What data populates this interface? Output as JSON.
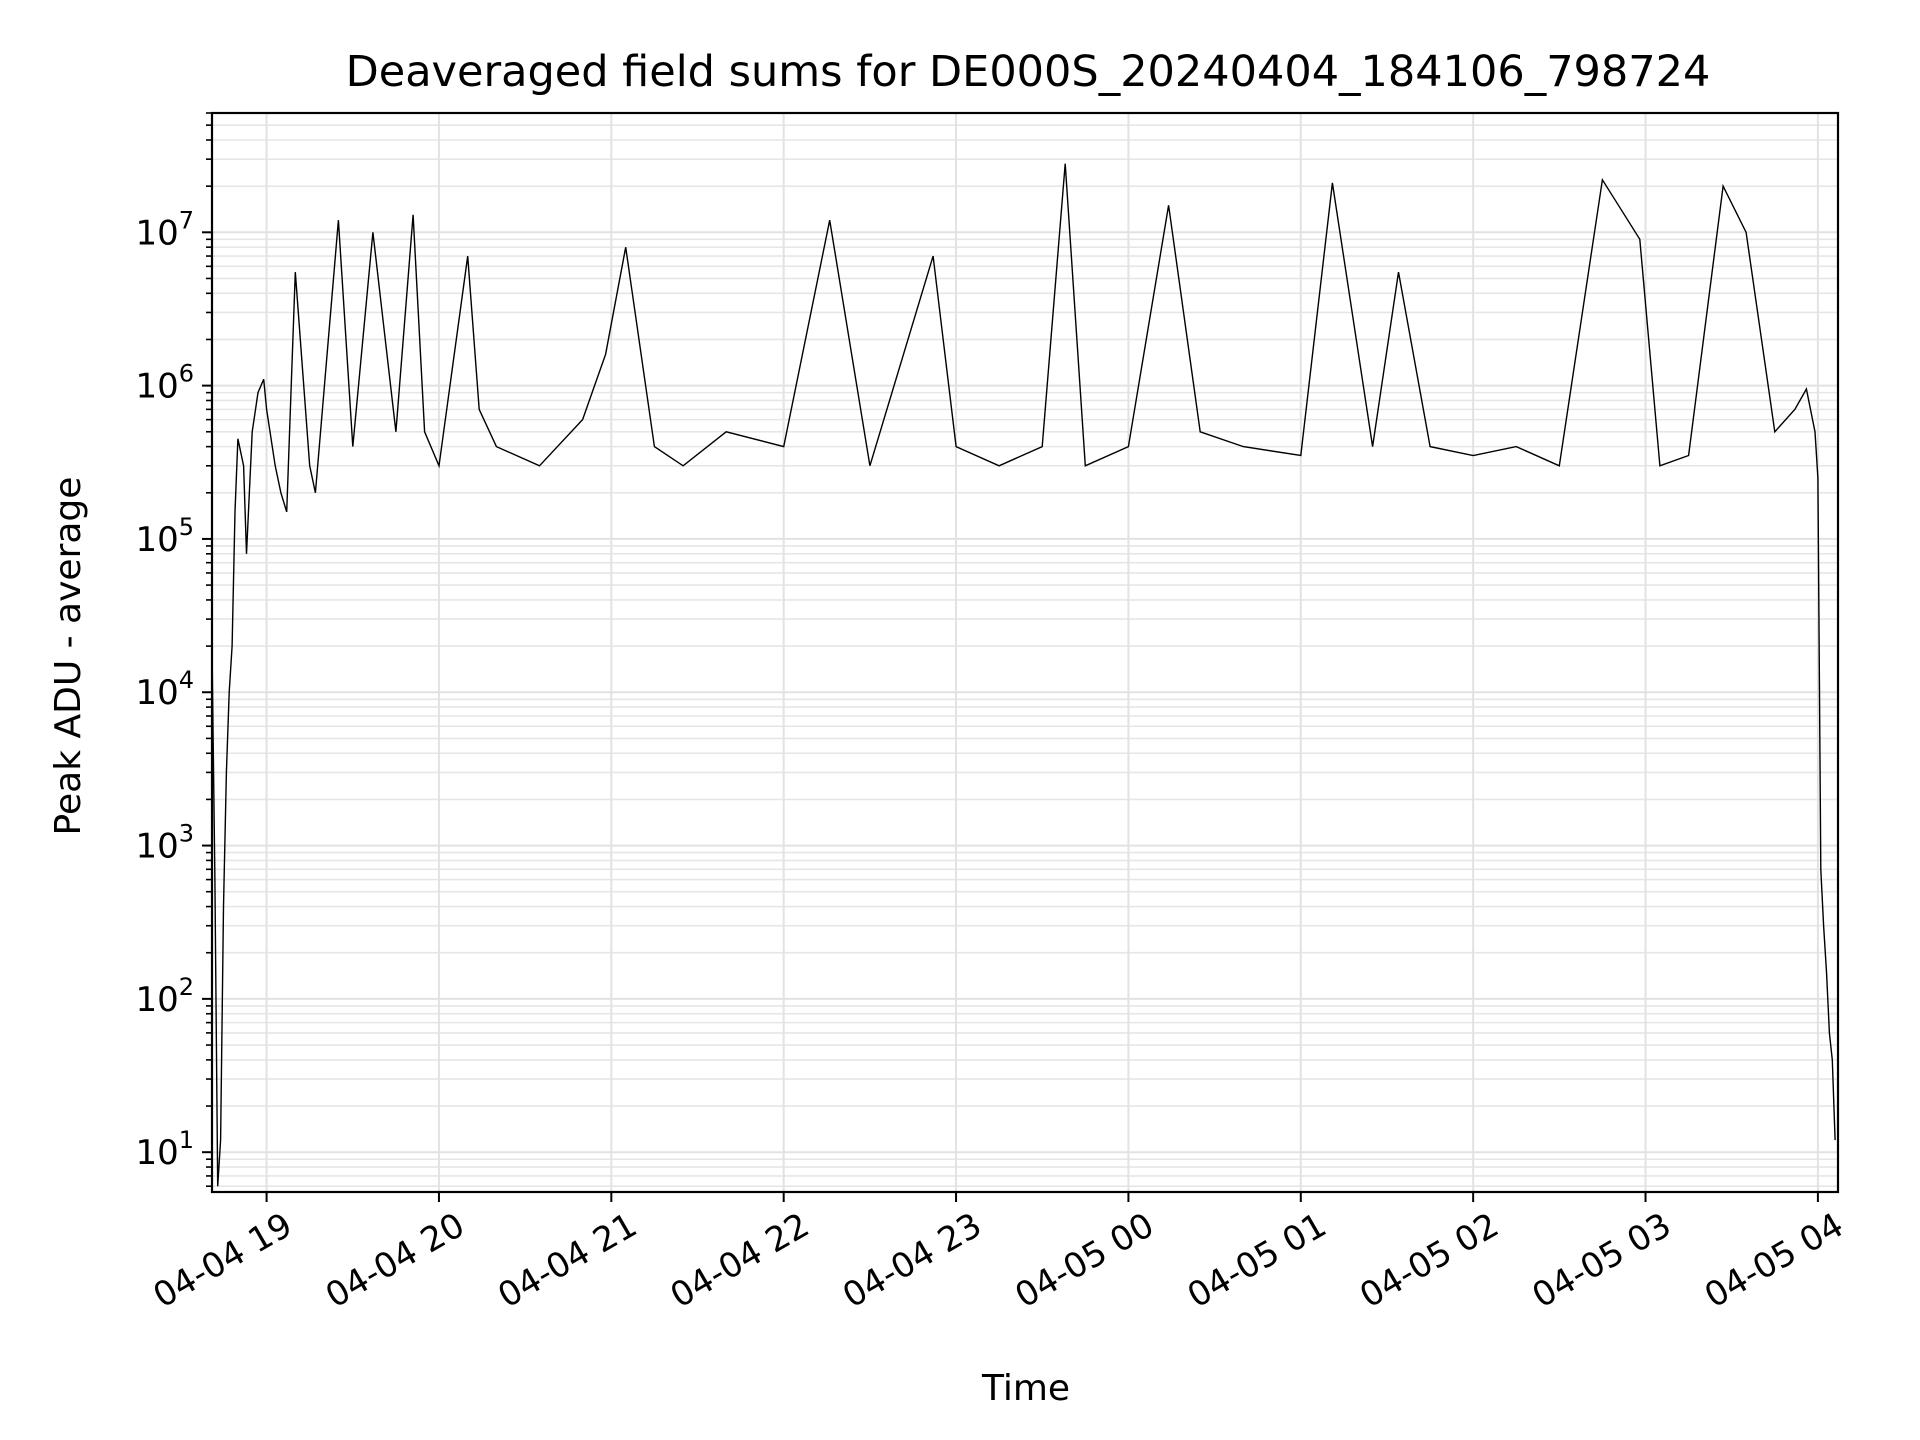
{
  "chart_data": {
    "type": "line",
    "title": "Deaveraged field sums for DE000S_20240404_184106_798724",
    "xlabel": "Time",
    "ylabel": "Peak ADU - average",
    "yscale": "log",
    "xlim": [
      "2024-04-04 18:41",
      "2024-04-05 04:07"
    ],
    "ylim": [
      5.5,
      60000000
    ],
    "grid": true,
    "series_color": "#000000",
    "x_ticks": [
      "04-04 19",
      "04-04 20",
      "04-04 21",
      "04-04 22",
      "04-04 23",
      "04-05 00",
      "04-05 01",
      "04-05 02",
      "04-05 03",
      "04-05 04"
    ],
    "y_ticks": [
      {
        "base": "10",
        "exp": "1",
        "value": 10
      },
      {
        "base": "10",
        "exp": "2",
        "value": 100
      },
      {
        "base": "10",
        "exp": "3",
        "value": 1000
      },
      {
        "base": "10",
        "exp": "4",
        "value": 10000
      },
      {
        "base": "10",
        "exp": "5",
        "value": 100000
      },
      {
        "base": "10",
        "exp": "6",
        "value": 1000000
      },
      {
        "base": "10",
        "exp": "7",
        "value": 10000000
      }
    ],
    "series": [
      {
        "x": [
          "2024-04-04 18:41",
          "2024-04-04 18:42",
          "2024-04-04 18:43",
          "2024-04-04 18:44",
          "2024-04-04 18:45",
          "2024-04-04 18:46",
          "2024-04-04 18:47",
          "2024-04-04 18:48",
          "2024-04-04 18:49",
          "2024-04-04 18:50",
          "2024-04-04 18:52",
          "2024-04-04 18:53",
          "2024-04-04 18:55",
          "2024-04-04 18:57",
          "2024-04-04 18:59",
          "2024-04-04 19:00",
          "2024-04-04 19:03",
          "2024-04-04 19:05",
          "2024-04-04 19:07",
          "2024-04-04 19:10",
          "2024-04-04 19:15",
          "2024-04-04 19:17",
          "2024-04-04 19:25",
          "2024-04-04 19:30",
          "2024-04-04 19:37",
          "2024-04-04 19:45",
          "2024-04-04 19:51",
          "2024-04-04 19:55",
          "2024-04-04 20:00",
          "2024-04-04 20:10",
          "2024-04-04 20:14",
          "2024-04-04 20:20",
          "2024-04-04 20:35",
          "2024-04-04 20:50",
          "2024-04-04 20:58",
          "2024-04-04 21:05",
          "2024-04-04 21:15",
          "2024-04-04 21:25",
          "2024-04-04 21:40",
          "2024-04-04 22:00",
          "2024-04-04 22:16",
          "2024-04-04 22:30",
          "2024-04-04 22:52",
          "2024-04-04 23:00",
          "2024-04-04 23:15",
          "2024-04-04 23:30",
          "2024-04-04 23:38",
          "2024-04-04 23:45",
          "2024-04-05 00:00",
          "2024-04-05 00:14",
          "2024-04-05 00:25",
          "2024-04-05 00:40",
          "2024-04-05 01:00",
          "2024-04-05 01:11",
          "2024-04-05 01:25",
          "2024-04-05 01:34",
          "2024-04-05 01:45",
          "2024-04-05 02:00",
          "2024-04-05 02:15",
          "2024-04-05 02:30",
          "2024-04-05 02:45",
          "2024-04-05 02:58",
          "2024-04-05 03:05",
          "2024-04-05 03:15",
          "2024-04-05 03:27",
          "2024-04-05 03:35",
          "2024-04-05 03:45",
          "2024-04-05 03:52",
          "2024-04-05 03:56",
          "2024-04-05 03:59",
          "2024-04-05 04:00",
          "2024-04-05 04:01",
          "2024-04-05 04:02",
          "2024-04-05 04:03",
          "2024-04-05 04:04",
          "2024-04-05 04:05",
          "2024-04-05 04:06"
        ],
        "y": [
          20000,
          600,
          6,
          12,
          400,
          3000,
          10000,
          20000,
          150000,
          450000,
          300000,
          80000,
          500000,
          900000,
          1100000,
          700000,
          300000,
          200000,
          150000,
          5500000,
          300000,
          200000,
          12000000,
          400000,
          10000000,
          500000,
          13000000,
          500000,
          300000,
          7000000,
          700000,
          400000,
          300000,
          600000,
          1600000,
          8000000,
          400000,
          300000,
          500000,
          400000,
          12000000,
          300000,
          7000000,
          400000,
          300000,
          400000,
          28000000,
          300000,
          400000,
          15000000,
          500000,
          400000,
          350000,
          21000000,
          400000,
          5500000,
          400000,
          350000,
          400000,
          300000,
          22000000,
          9000000,
          300000,
          350000,
          20000000,
          10000000,
          500000,
          700000,
          950000,
          500000,
          250000,
          700,
          300,
          150,
          60,
          40,
          12
        ]
      }
    ]
  }
}
